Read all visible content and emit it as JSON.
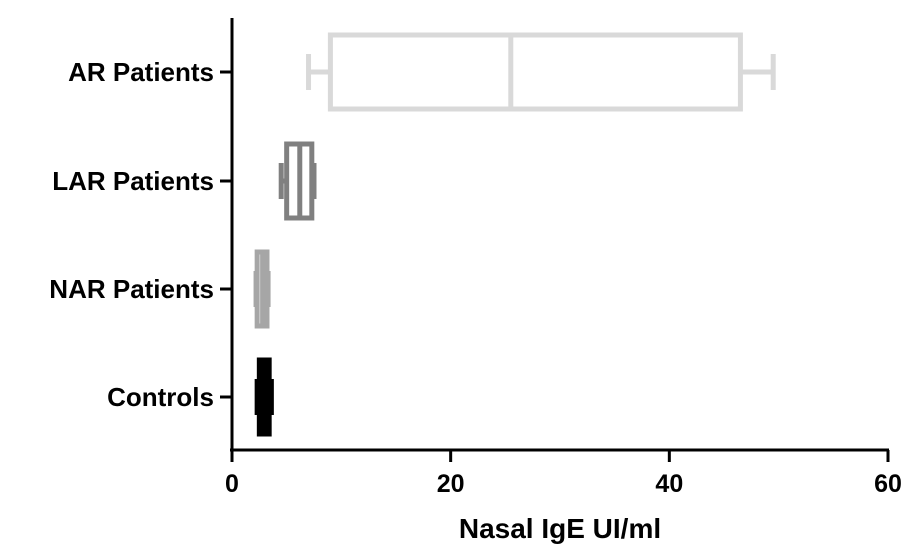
{
  "chart_data": {
    "type": "box",
    "orientation": "horizontal",
    "title": "",
    "xlabel": "Nasal IgE UI/ml",
    "ylabel": "",
    "xlim": [
      0,
      60
    ],
    "xticks": [
      0,
      20,
      40,
      60
    ],
    "grid": false,
    "categories": [
      "AR Patients",
      "LAR Patients",
      "NAR Patients",
      "Controls"
    ],
    "series": [
      {
        "category": "AR Patients",
        "min": 7.0,
        "q1": 9.0,
        "median": 25.5,
        "q3": 46.5,
        "max": 49.5,
        "color": "#d9d9d9"
      },
      {
        "category": "LAR Patients",
        "min": 4.5,
        "q1": 5.0,
        "median": 6.2,
        "q3": 7.3,
        "max": 7.5,
        "color": "#808080"
      },
      {
        "category": "NAR Patients",
        "min": 2.2,
        "q1": 2.3,
        "median": 2.8,
        "q3": 3.2,
        "max": 3.3,
        "color": "#a6a6a6"
      },
      {
        "category": "Controls",
        "min": 2.3,
        "q1": 2.5,
        "median": 2.9,
        "q3": 3.4,
        "max": 3.6,
        "color": "#000000"
      }
    ]
  }
}
